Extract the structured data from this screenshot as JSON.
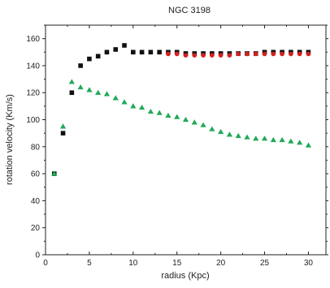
{
  "chart_data": {
    "type": "scatter",
    "title": "NGC 3198",
    "xlabel": "radius (Kpc)",
    "ylabel": "rotation velocity (Km/s)",
    "xlim": [
      0,
      32
    ],
    "ylim": [
      0,
      170
    ],
    "xticks": [
      0,
      5,
      10,
      15,
      20,
      25,
      30
    ],
    "yticks": [
      0,
      20,
      40,
      60,
      80,
      100,
      120,
      140,
      160
    ],
    "grid": false,
    "series": [
      {
        "marker": "square",
        "color": "#111111",
        "points": [
          [
            1,
            60
          ],
          [
            2,
            90
          ],
          [
            3,
            120
          ],
          [
            4,
            140
          ],
          [
            5,
            145
          ],
          [
            6,
            147
          ],
          [
            7,
            150
          ],
          [
            8,
            152
          ],
          [
            9,
            155
          ],
          [
            10,
            150
          ],
          [
            11,
            150
          ],
          [
            12,
            150
          ],
          [
            13,
            150
          ],
          [
            14,
            150
          ],
          [
            15,
            150
          ],
          [
            16,
            149
          ],
          [
            17,
            149
          ],
          [
            18,
            149
          ],
          [
            19,
            149
          ],
          [
            20,
            149
          ],
          [
            21,
            149
          ],
          [
            22,
            149
          ],
          [
            23,
            149
          ],
          [
            24,
            149
          ],
          [
            25,
            150
          ],
          [
            26,
            150
          ],
          [
            27,
            150
          ],
          [
            28,
            150
          ],
          [
            29,
            150
          ],
          [
            30,
            150
          ]
        ]
      },
      {
        "marker": "circle",
        "color": "#d42020",
        "points": [
          [
            14,
            149
          ],
          [
            15,
            149
          ],
          [
            16,
            148
          ],
          [
            17,
            148
          ],
          [
            18,
            148
          ],
          [
            19,
            148
          ],
          [
            20,
            148
          ],
          [
            21,
            148
          ],
          [
            22,
            149
          ],
          [
            23,
            149
          ],
          [
            24,
            149
          ],
          [
            25,
            149
          ],
          [
            26,
            149
          ],
          [
            27,
            149
          ],
          [
            28,
            149
          ],
          [
            29,
            149
          ],
          [
            30,
            149
          ]
        ]
      },
      {
        "marker": "triangle",
        "color": "#1faa55",
        "points": [
          [
            1,
            60
          ],
          [
            2,
            95
          ],
          [
            3,
            128
          ],
          [
            4,
            124
          ],
          [
            5,
            122
          ],
          [
            6,
            120
          ],
          [
            7,
            119
          ],
          [
            8,
            116
          ],
          [
            9,
            113
          ],
          [
            10,
            110
          ],
          [
            11,
            109
          ],
          [
            12,
            106
          ],
          [
            13,
            105
          ],
          [
            14,
            103
          ],
          [
            15,
            102
          ],
          [
            16,
            100
          ],
          [
            17,
            98
          ],
          [
            18,
            96
          ],
          [
            19,
            93
          ],
          [
            20,
            91
          ],
          [
            21,
            89
          ],
          [
            22,
            88
          ],
          [
            23,
            87
          ],
          [
            24,
            86
          ],
          [
            25,
            86
          ],
          [
            26,
            85
          ],
          [
            27,
            85
          ],
          [
            28,
            84
          ],
          [
            29,
            83
          ],
          [
            30,
            81
          ]
        ]
      }
    ]
  }
}
